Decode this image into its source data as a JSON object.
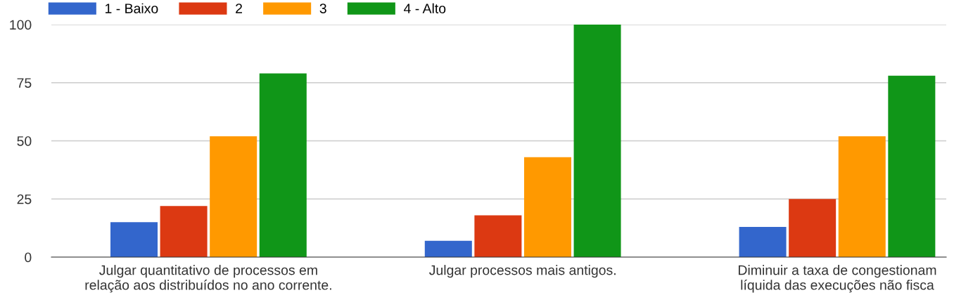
{
  "chart_data": {
    "type": "bar",
    "categories": [
      "Julgar quantitativo de processos em\nrelação aos distribuídos no ano corrente.",
      "Julgar processos mais antigos.",
      "Diminuir a taxa de congestionam\nlíquida das execuções não fisca"
    ],
    "series": [
      {
        "name": "1 - Baixo",
        "color": "#3366cc",
        "values": [
          15,
          7,
          13
        ]
      },
      {
        "name": "2",
        "color": "#dc3912",
        "values": [
          22,
          18,
          25
        ]
      },
      {
        "name": "3",
        "color": "#ff9900",
        "values": [
          52,
          43,
          52
        ]
      },
      {
        "name": "4 - Alto",
        "color": "#109618",
        "values": [
          79,
          100,
          78
        ]
      }
    ],
    "ylim": [
      0,
      100
    ],
    "yticks": [
      0,
      25,
      50,
      75,
      100
    ],
    "grid": "y",
    "legend": "top left"
  }
}
